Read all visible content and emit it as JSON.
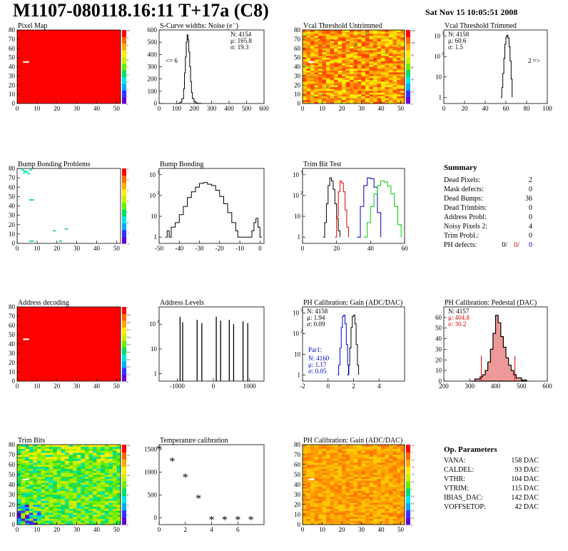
{
  "header": {
    "title": "M1107-080118.16:11 T+17a (C8)",
    "date": "Sat Nov 15 10:05:51 2008"
  },
  "colors": {
    "blue": "#0000cc",
    "red": "#dd0000",
    "green": "#00cc00",
    "hist_fill_red": "#ee9999",
    "map_red": "#ff0000",
    "pixel_dot": "#ffffff"
  },
  "chart_data": [
    {
      "id": "pixel-map",
      "type": "heatmap",
      "title": "Pixel Map",
      "xlim": [
        0,
        52
      ],
      "ylim": [
        0,
        80
      ],
      "xticks": [
        0,
        10,
        20,
        30,
        40,
        50
      ],
      "yticks": [
        0,
        10,
        20,
        30,
        40,
        50,
        60,
        70,
        80
      ],
      "fill": "uniform-red",
      "palette": [
        "#6600cc",
        "#3333ff",
        "#00aaff",
        "#00e5e5",
        "#00dd66",
        "#66ee00",
        "#ccee00",
        "#ffee00",
        "#ffaa00",
        "#ff6600",
        "#ff0000"
      ],
      "zscale_ticks": [
        "0",
        "1",
        "2",
        "3",
        "4",
        "5",
        "6",
        "7",
        "8",
        "9",
        "10"
      ],
      "marks": [
        {
          "x": 3,
          "y": 46,
          "color": "white"
        }
      ]
    },
    {
      "id": "scurve-noise",
      "type": "line",
      "title": "S-Curve widths: Noise (e⁻)",
      "xlim": [
        0,
        600
      ],
      "ylim": [
        0,
        600
      ],
      "xticks": [
        0,
        100,
        200,
        300,
        400,
        500,
        600
      ],
      "yticks": [
        0,
        100,
        200,
        300,
        400,
        500,
        600
      ],
      "stats": [
        "N: 4154",
        "μ: 165.8",
        "σ: 19.3"
      ],
      "underflow_label": "<= 6",
      "x": [
        100,
        110,
        120,
        130,
        140,
        145,
        150,
        155,
        160,
        165,
        170,
        175,
        180,
        185,
        190,
        200,
        210,
        220,
        240
      ],
      "y": [
        0,
        2,
        10,
        40,
        120,
        250,
        380,
        500,
        560,
        520,
        420,
        300,
        180,
        90,
        40,
        15,
        5,
        2,
        0
      ]
    },
    {
      "id": "vcal-untrimmed",
      "type": "heatmap",
      "title": "Vcal Threshold Untrimmed",
      "xlim": [
        0,
        52
      ],
      "ylim": [
        0,
        80
      ],
      "xticks": [
        0,
        10,
        20,
        30,
        40,
        50
      ],
      "yticks": [
        0,
        10,
        20,
        30,
        40,
        50,
        60,
        70,
        80
      ],
      "fill": "noise-hot",
      "palette": [
        "#6600cc",
        "#3333ff",
        "#00aaff",
        "#00e5e5",
        "#00dd66",
        "#66ee00",
        "#ccee00",
        "#ffee00",
        "#ffaa00",
        "#ff6600",
        "#ff0000"
      ],
      "zscale_ticks": [
        "0",
        "20",
        "40",
        "60",
        "80",
        "100",
        "120"
      ],
      "marks": [
        {
          "x": 3,
          "y": 46,
          "color": "white"
        }
      ]
    },
    {
      "id": "vcal-trimmed",
      "type": "line",
      "title": "Vcal Threshold Trimmed",
      "xlim": [
        0,
        100
      ],
      "ylog": true,
      "ylim": [
        0.5,
        2000
      ],
      "xticks": [
        0,
        20,
        40,
        60,
        80,
        100
      ],
      "yticks": [
        1,
        10,
        100,
        1000
      ],
      "stats": [
        "N: 4158",
        "μ: 60.6",
        "σ:  1.5"
      ],
      "overflow_label": "2 =>",
      "x": [
        55,
        56,
        57,
        58,
        59,
        60,
        61,
        62,
        63,
        64,
        65,
        66
      ],
      "y": [
        1,
        3,
        15,
        80,
        400,
        900,
        1100,
        800,
        300,
        60,
        8,
        1
      ]
    },
    {
      "id": "bump-problems",
      "type": "heatmap",
      "title": "Bump Bonding Problems",
      "xlim": [
        0,
        52
      ],
      "ylim": [
        0,
        80
      ],
      "xticks": [
        0,
        10,
        20,
        30,
        40,
        50
      ],
      "yticks": [
        0,
        10,
        20,
        30,
        40,
        50,
        60,
        70,
        80
      ],
      "fill": "sparse",
      "palette": [
        "#6600cc",
        "#3333ff",
        "#00aaff",
        "#00e5e5",
        "#00dd66",
        "#66ee00",
        "#ccee00",
        "#ffee00",
        "#ffaa00",
        "#ff6600",
        "#ff0000"
      ],
      "zscale_ticks": [
        "-2",
        "-1",
        "0",
        "1",
        "2",
        "3",
        "4",
        "5"
      ],
      "points": [
        [
          2,
          78
        ],
        [
          3,
          77
        ],
        [
          4,
          76
        ],
        [
          6,
          78
        ],
        [
          3,
          75
        ],
        [
          5,
          74
        ],
        [
          6,
          46
        ],
        [
          7,
          46
        ],
        [
          18,
          13
        ],
        [
          24,
          15
        ],
        [
          6,
          2
        ],
        [
          7,
          2
        ],
        [
          21,
          2
        ]
      ]
    },
    {
      "id": "bump-bonding",
      "type": "line",
      "title": "Bump Bonding",
      "xlim": [
        -50,
        2
      ],
      "ylog": true,
      "ylim": [
        0.5,
        2000
      ],
      "xticks": [
        -50,
        -40,
        -30,
        -20,
        -10,
        0
      ],
      "yticks": [
        1,
        10,
        100,
        1000
      ],
      "x": [
        -47,
        -46,
        -45,
        -44,
        -42,
        -40,
        -38,
        -36,
        -34,
        -32,
        -30,
        -28,
        -26,
        -24,
        -22,
        -20,
        -18,
        -16,
        -14,
        -12,
        -11,
        -4,
        -3,
        -2,
        -1,
        0,
        1
      ],
      "y": [
        1,
        2,
        1,
        3,
        5,
        12,
        30,
        80,
        150,
        250,
        380,
        420,
        350,
        300,
        180,
        90,
        40,
        15,
        5,
        2,
        1,
        2,
        5,
        8,
        3,
        1,
        1
      ]
    },
    {
      "id": "trim-bit-test",
      "type": "line",
      "title": "Trim Bit Test",
      "xlim": [
        0,
        60
      ],
      "ylog": true,
      "ylim": [
        0.5,
        2000
      ],
      "xticks": [
        0,
        20,
        40,
        60
      ],
      "yticks": [
        1,
        10,
        100,
        1000
      ],
      "series": [
        {
          "color": "black",
          "x": [
            12,
            13,
            14,
            15,
            16,
            17,
            18,
            19,
            20,
            21,
            22
          ],
          "y": [
            1,
            5,
            40,
            300,
            700,
            500,
            200,
            40,
            8,
            2,
            1
          ]
        },
        {
          "color": "red",
          "x": [
            19,
            20,
            21,
            22,
            23,
            24,
            25,
            26,
            27
          ],
          "y": [
            1,
            10,
            150,
            500,
            400,
            150,
            20,
            3,
            1
          ]
        },
        {
          "color": "blue",
          "x": [
            32,
            34,
            36,
            38,
            40,
            42,
            44,
            46
          ],
          "y": [
            1,
            30,
            300,
            700,
            650,
            250,
            15,
            1
          ]
        },
        {
          "color": "green",
          "x": [
            36,
            38,
            40,
            42,
            44,
            46,
            48,
            50,
            52,
            54,
            56,
            58
          ],
          "y": [
            1,
            5,
            30,
            120,
            300,
            500,
            450,
            280,
            120,
            30,
            4,
            1
          ]
        }
      ]
    },
    {
      "id": "address-decoding",
      "type": "heatmap",
      "title": "Address decoding",
      "xlim": [
        0,
        52
      ],
      "ylim": [
        0,
        80
      ],
      "xticks": [
        0,
        10,
        20,
        30,
        40,
        50
      ],
      "yticks": [
        0,
        10,
        20,
        30,
        40,
        50,
        60,
        70,
        80
      ],
      "fill": "uniform-red",
      "palette": [
        "#6600cc",
        "#3333ff",
        "#00aaff",
        "#00e5e5",
        "#00dd66",
        "#66ee00",
        "#ccee00",
        "#ffee00",
        "#ffaa00",
        "#ff6600",
        "#ff0000"
      ],
      "zscale_ticks": [
        "0",
        "0.1",
        "0.2",
        "0.3",
        "0.4",
        "0.5",
        "0.6",
        "0.7",
        "0.8",
        "0.9",
        "1"
      ],
      "marks": [
        {
          "x": 3,
          "y": 46,
          "color": "white"
        }
      ]
    },
    {
      "id": "address-levels",
      "type": "bar",
      "title": "Address Levels",
      "xlim": [
        -1500,
        1400
      ],
      "ylog": true,
      "ylim": [
        0.5,
        500
      ],
      "xticks": [
        -1000,
        0,
        1000
      ],
      "yticks": [
        1,
        10,
        100
      ],
      "x": [
        -920,
        -850,
        -450,
        -320,
        80,
        200,
        440,
        560,
        820,
        950
      ],
      "y": [
        200,
        120,
        150,
        110,
        200,
        140,
        150,
        100,
        130,
        110
      ]
    },
    {
      "id": "ph-gain",
      "type": "line",
      "title": "PH Calibration: Gain (ADC/DAC)",
      "xlim": [
        -2,
        6
      ],
      "ylog": true,
      "ylim": [
        0.5,
        2000
      ],
      "xticks": [
        -2,
        0,
        2,
        4
      ],
      "yticks": [
        1,
        10,
        100,
        1000
      ],
      "stats": [
        "N: 4158",
        "μ: 1.94",
        "σ: 0.09"
      ],
      "par_label": "Par1:",
      "par_stats": [
        "N: 4160",
        "μ: 1.17",
        "σ: 0.05"
      ],
      "series": [
        {
          "color": "black",
          "x": [
            1.5,
            1.6,
            1.7,
            1.8,
            1.9,
            2.0,
            2.1,
            2.2,
            2.3,
            2.4
          ],
          "y": [
            1,
            3,
            20,
            200,
            700,
            800,
            300,
            30,
            3,
            1
          ]
        },
        {
          "color": "blue",
          "x": [
            1.5,
            1.6,
            1.7,
            1.8,
            1.9,
            2.0,
            2.1,
            2.2,
            2.3,
            2.4
          ],
          "y": [
            1,
            3,
            20,
            200,
            700,
            800,
            300,
            30,
            3,
            1
          ]
        }
      ]
    },
    {
      "id": "ph-pedestal",
      "type": "line",
      "title": "PH Calibration: Pedestal (DAC)",
      "xlim": [
        200,
        600
      ],
      "ylim": [
        0,
        70
      ],
      "xticks": [
        200,
        300,
        400,
        500,
        600
      ],
      "yticks": [
        0,
        10,
        20,
        30,
        40,
        50,
        60
      ],
      "stats": [
        "N: 4157",
        "μ: 404.8",
        "σ: 30.2"
      ],
      "x": [
        300,
        320,
        340,
        350,
        360,
        370,
        380,
        390,
        400,
        410,
        420,
        430,
        440,
        450,
        460,
        470,
        480,
        500,
        520
      ],
      "y": [
        0,
        2,
        4,
        6,
        10,
        18,
        30,
        45,
        62,
        55,
        42,
        32,
        22,
        15,
        10,
        6,
        3,
        1,
        0
      ],
      "cut_lines": [
        345,
        475
      ]
    },
    {
      "id": "trim-bits",
      "type": "heatmap",
      "title": "Trim Bits",
      "xlim": [
        0,
        52
      ],
      "ylim": [
        0,
        80
      ],
      "xticks": [
        0,
        10,
        20,
        30,
        40,
        50
      ],
      "yticks": [
        0,
        10,
        20,
        30,
        40,
        50,
        60,
        70,
        80
      ],
      "fill": "noise-green",
      "palette": [
        "#6600cc",
        "#3333ff",
        "#00aaff",
        "#00e5e5",
        "#00dd66",
        "#66ee00",
        "#ccee00",
        "#ffee00",
        "#ffaa00",
        "#ff6600",
        "#ff0000"
      ],
      "zscale_ticks": [
        "0",
        "2",
        "4",
        "6",
        "8",
        "10",
        "12",
        "14",
        "16"
      ],
      "marks": [
        {
          "x": 3,
          "y": 46,
          "color": "white"
        }
      ]
    },
    {
      "id": "temperature",
      "type": "scatter",
      "title": "Temperature calibration",
      "xlim": [
        0,
        8
      ],
      "ylim": [
        -150,
        1600
      ],
      "xticks": [
        0,
        2,
        4,
        6
      ],
      "yticks": [
        0,
        500,
        1000,
        1500
      ],
      "x": [
        0,
        1,
        2,
        3,
        4,
        5,
        6,
        7
      ],
      "y": [
        1500,
        1230,
        880,
        420,
        -50,
        -50,
        -50,
        -50
      ]
    },
    {
      "id": "ph-gain-map",
      "type": "heatmap",
      "title": "PH Calibration: Gain (ADC/DAC)",
      "xlim": [
        0,
        52
      ],
      "ylim": [
        0,
        80
      ],
      "xticks": [
        0,
        10,
        20,
        30,
        40,
        50
      ],
      "yticks": [
        0,
        10,
        20,
        30,
        40,
        50,
        60,
        70,
        80
      ],
      "fill": "noise-orange",
      "palette": [
        "#6600cc",
        "#3333ff",
        "#00aaff",
        "#00e5e5",
        "#00dd66",
        "#66ee00",
        "#ccee00",
        "#ffee00",
        "#ffaa00",
        "#ff6600",
        "#ff0000"
      ],
      "zscale_ticks": [
        "0",
        "0.2",
        "0.4",
        "0.6",
        "0.8",
        "1",
        "1.2",
        "1.4",
        "1.6",
        "1.8",
        "2",
        "2.2"
      ],
      "marks": [
        {
          "x": 3,
          "y": 46,
          "color": "white"
        }
      ]
    }
  ],
  "summary": {
    "title": "Summary",
    "rows": [
      {
        "label": "Dead Pixels:",
        "values": [
          "2"
        ]
      },
      {
        "label": "Mask defects:",
        "values": [
          "0"
        ]
      },
      {
        "label": "Dead Bumps:",
        "values": [
          "36"
        ]
      },
      {
        "label": "Dead Trimbits:",
        "values": [
          "0"
        ]
      },
      {
        "label": "Address Probl:",
        "values": [
          "0"
        ]
      },
      {
        "label": "Noisy Pixels 2:",
        "values": [
          "4"
        ]
      },
      {
        "label": "Trim Probl.:",
        "values": [
          "0"
        ]
      },
      {
        "label": "PH defects:",
        "values": [
          "0/",
          "0/",
          "0"
        ],
        "colors": [
          "black",
          "red",
          "blue"
        ]
      }
    ]
  },
  "op_params": {
    "title": "Op. Parameters",
    "rows": [
      {
        "label": "VANA:",
        "value": "158 DAC"
      },
      {
        "label": "CALDEL:",
        "value": "93 DAC"
      },
      {
        "label": "VTHR:",
        "value": "104 DAC"
      },
      {
        "label": "VTRIM:",
        "value": "115 DAC"
      },
      {
        "label": "IBIAS_DAC:",
        "value": "142 DAC"
      },
      {
        "label": "VOFFSETOP:",
        "value": "42 DAC"
      }
    ]
  }
}
